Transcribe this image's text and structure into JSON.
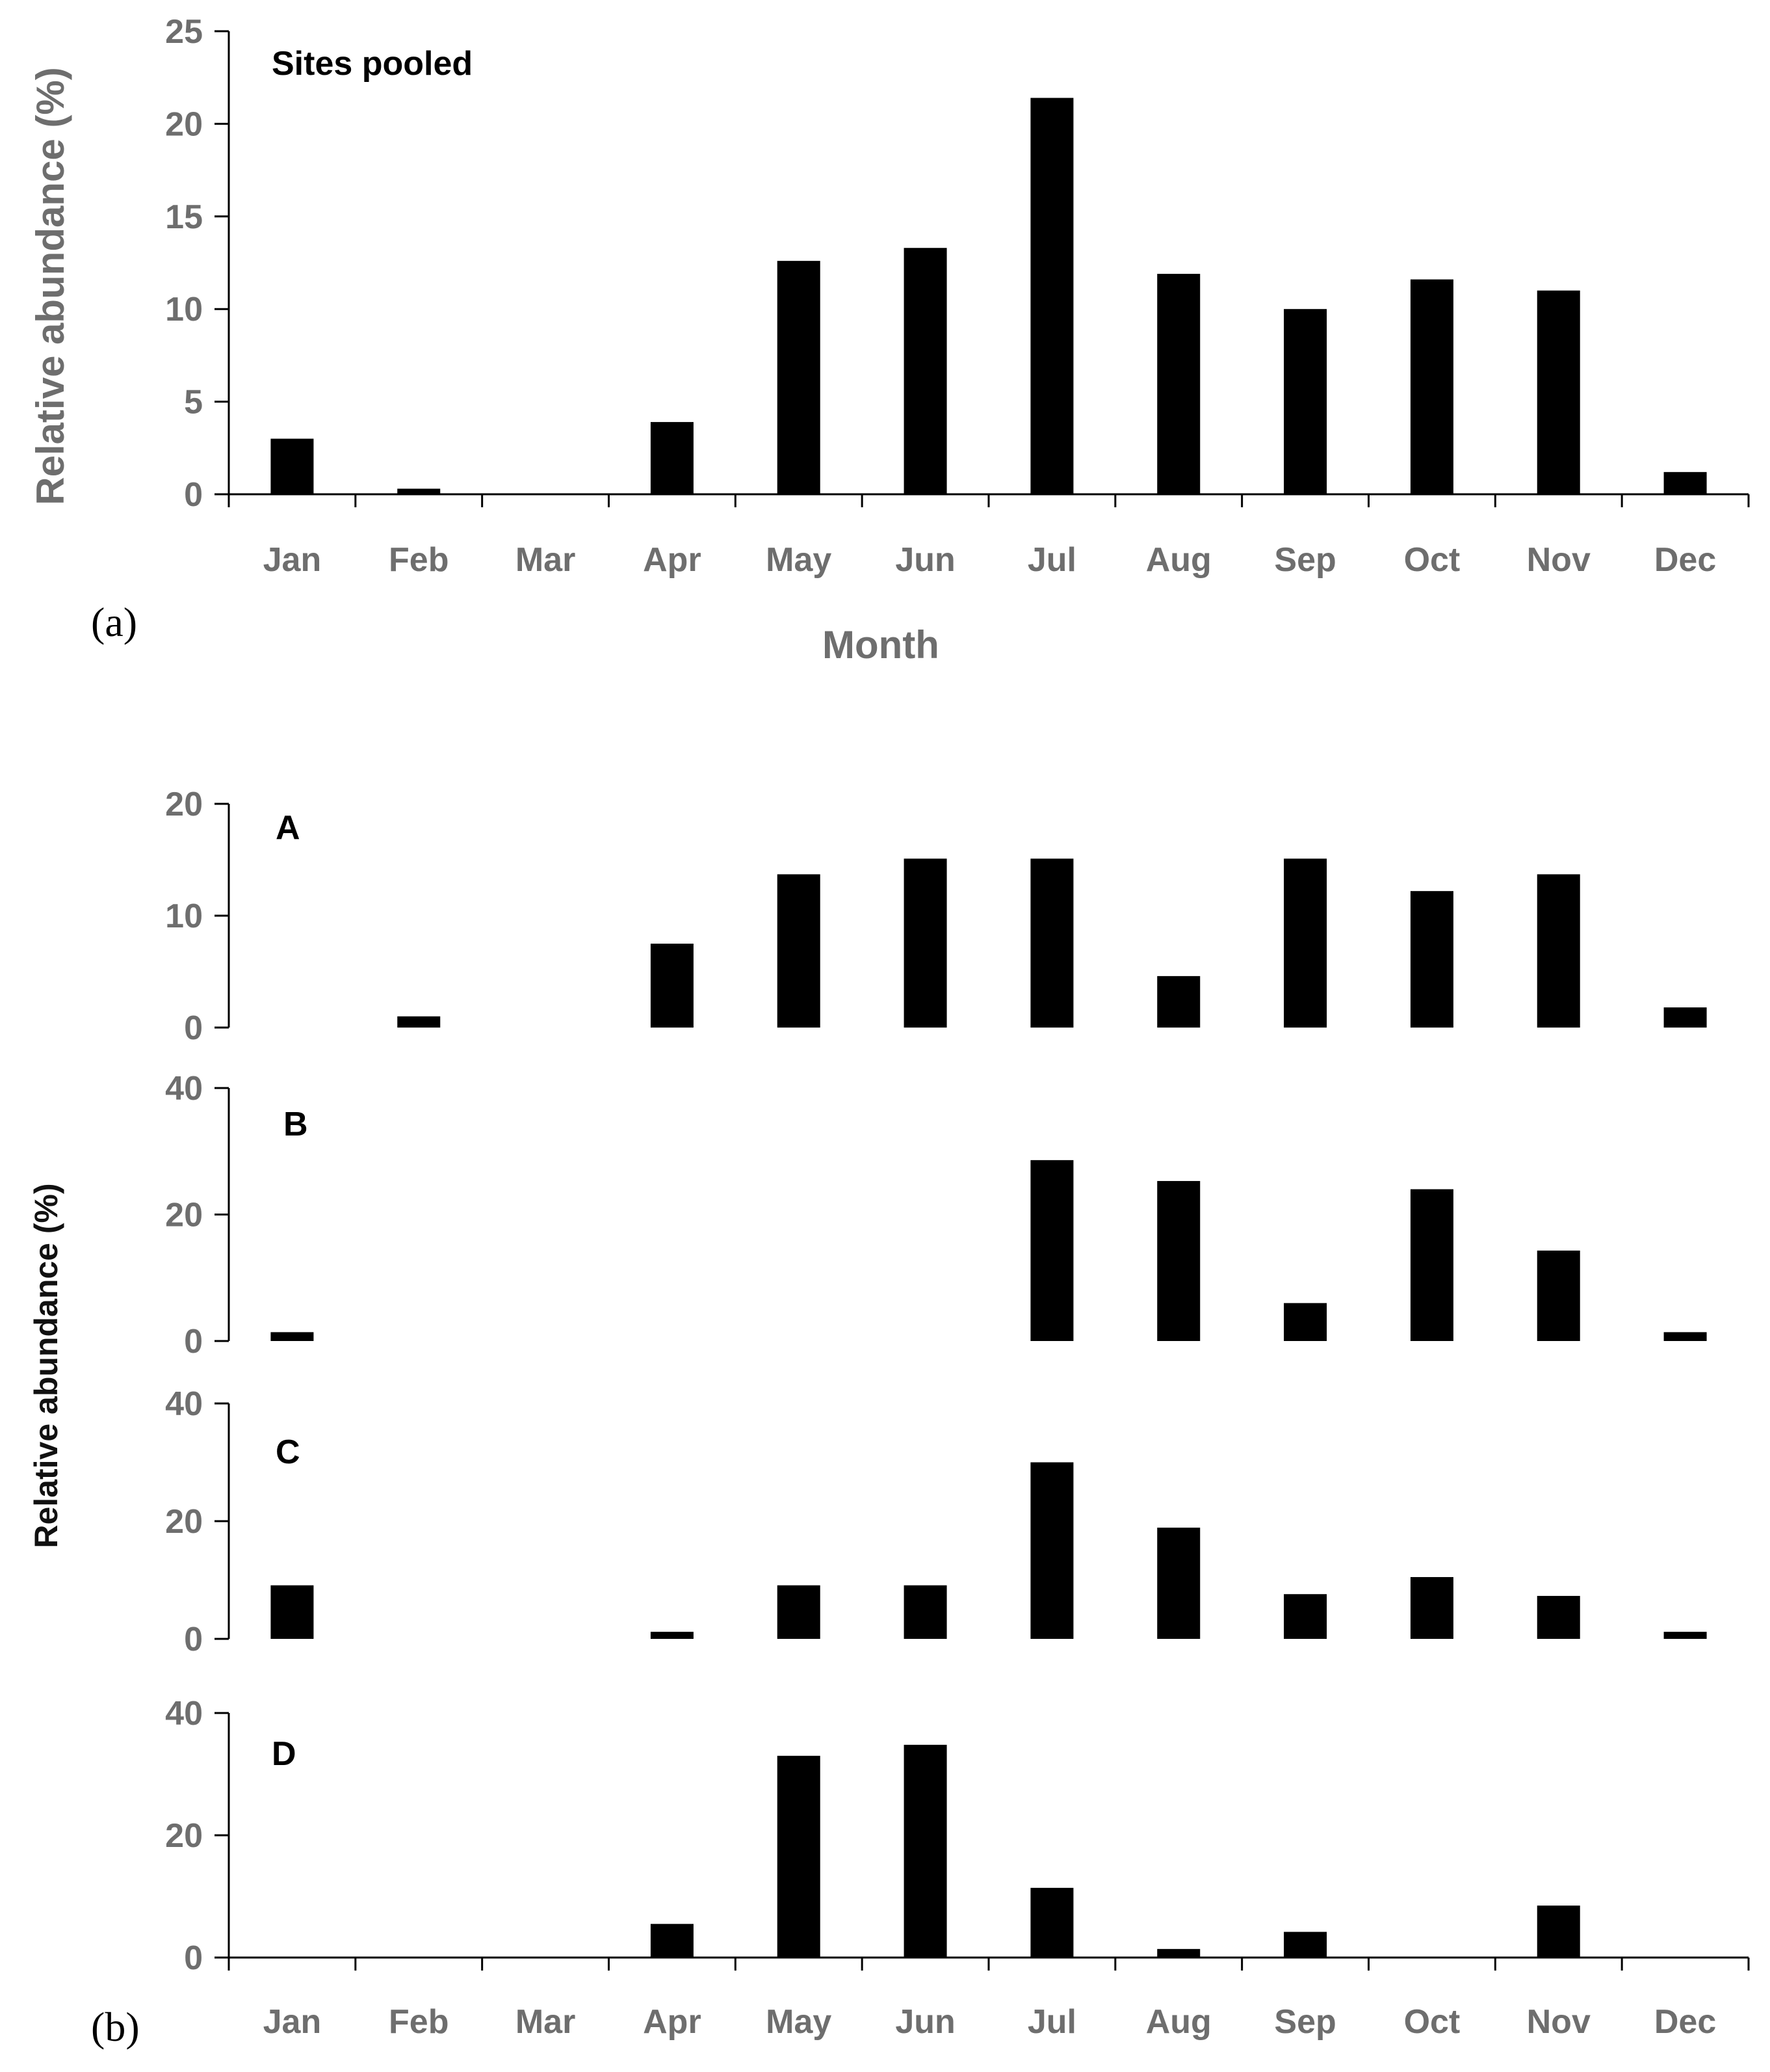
{
  "chart_data": [
    {
      "type": "bar",
      "panel_tag": "(a)",
      "title": "Sites pooled",
      "xlabel": "Month",
      "ylabel": "Relative abundance (%)",
      "categories": [
        "Jan",
        "Feb",
        "Mar",
        "Apr",
        "May",
        "Jun",
        "Jul",
        "Aug",
        "Sep",
        "Oct",
        "Nov",
        "Dec"
      ],
      "values": [
        3.0,
        0.3,
        0,
        3.9,
        12.6,
        13.3,
        21.4,
        11.9,
        10.0,
        11.6,
        11.0,
        1.2
      ],
      "ylim": [
        0,
        25
      ],
      "yticks": [
        "0",
        "5",
        "10",
        "15",
        "20",
        "25"
      ],
      "bar_color": "#000000",
      "grid": false
    },
    {
      "type": "bar",
      "panel_tag": "(b)",
      "ylabel": "Relative abundance (%)",
      "categories": [
        "Jan",
        "Feb",
        "Mar",
        "Apr",
        "May",
        "Jun",
        "Jul",
        "Aug",
        "Sep",
        "Oct",
        "Nov",
        "Dec"
      ],
      "bar_color": "#000000",
      "grid": false,
      "subplots": [
        {
          "title": "A",
          "values": [
            0,
            1.0,
            0,
            7.5,
            13.7,
            15.1,
            15.1,
            4.6,
            15.1,
            12.2,
            13.7,
            1.8
          ],
          "ylim": [
            0,
            20
          ],
          "yticks": [
            "0",
            "10",
            "20"
          ]
        },
        {
          "title": "B",
          "values": [
            1.4,
            0,
            0,
            0,
            0,
            0,
            28.6,
            25.3,
            6.0,
            24.0,
            14.3,
            1.4
          ],
          "ylim": [
            0,
            40
          ],
          "yticks": [
            "0",
            "20",
            "40"
          ]
        },
        {
          "title": "C",
          "values": [
            9.1,
            0,
            0,
            1.2,
            9.1,
            9.1,
            30.0,
            18.9,
            7.6,
            10.5,
            7.3,
            1.2
          ],
          "ylim": [
            0,
            40
          ],
          "yticks": [
            "0",
            "20",
            "40"
          ]
        },
        {
          "title": "D",
          "values": [
            0,
            0,
            0,
            5.5,
            33.0,
            34.8,
            11.4,
            1.4,
            4.2,
            0,
            8.5,
            0
          ],
          "ylim": [
            0,
            40
          ],
          "yticks": [
            "0",
            "20",
            "40"
          ]
        }
      ]
    }
  ]
}
